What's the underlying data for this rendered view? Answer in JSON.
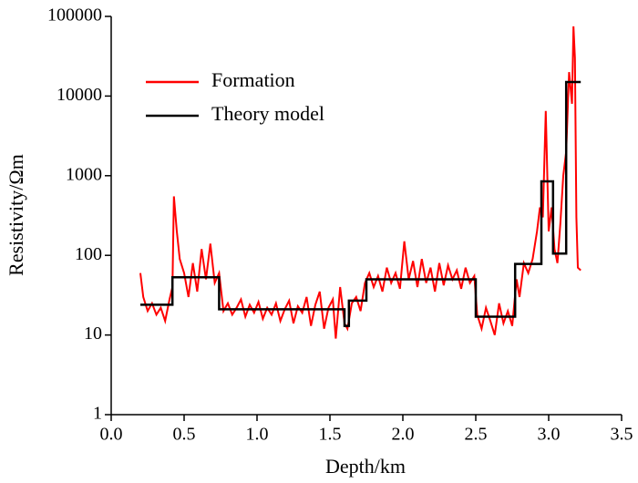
{
  "chart_data": {
    "type": "line",
    "xlabel": "Depth/km",
    "ylabel": "Resistivity/Ωm",
    "xlim": [
      0,
      3.5
    ],
    "xticks": [
      {
        "value": 0,
        "label": "0.0"
      },
      0.5,
      {
        "value": 1,
        "label": "1.0"
      },
      1.5,
      {
        "value": 2,
        "label": "2.0"
      },
      2.5,
      {
        "value": 3,
        "label": "3.0"
      },
      3.5
    ],
    "ylim": [
      1,
      100000
    ],
    "yticks": [
      1,
      10,
      100,
      1000,
      10000,
      100000
    ],
    "log_y": true,
    "legend": "upper left",
    "series": [
      {
        "name": "Formation",
        "color": "#ff0000",
        "x": [
          0.2,
          0.22,
          0.25,
          0.28,
          0.31,
          0.34,
          0.37,
          0.4,
          0.42,
          0.43,
          0.45,
          0.47,
          0.5,
          0.53,
          0.56,
          0.59,
          0.62,
          0.65,
          0.68,
          0.71,
          0.74,
          0.77,
          0.8,
          0.83,
          0.86,
          0.89,
          0.92,
          0.95,
          0.98,
          1.01,
          1.04,
          1.07,
          1.1,
          1.13,
          1.16,
          1.19,
          1.22,
          1.25,
          1.28,
          1.31,
          1.34,
          1.37,
          1.4,
          1.43,
          1.46,
          1.49,
          1.52,
          1.54,
          1.57,
          1.6,
          1.62,
          1.65,
          1.68,
          1.71,
          1.74,
          1.77,
          1.8,
          1.83,
          1.86,
          1.89,
          1.92,
          1.95,
          1.98,
          2.01,
          2.04,
          2.07,
          2.1,
          2.13,
          2.16,
          2.19,
          2.22,
          2.25,
          2.28,
          2.31,
          2.34,
          2.37,
          2.4,
          2.43,
          2.46,
          2.49,
          2.51,
          2.54,
          2.57,
          2.6,
          2.63,
          2.66,
          2.69,
          2.72,
          2.75,
          2.78,
          2.8,
          2.83,
          2.86,
          2.89,
          2.92,
          2.94,
          2.96,
          2.98,
          3.0,
          3.02,
          3.04,
          3.06,
          3.08,
          3.1,
          3.12,
          3.14,
          3.16,
          3.17,
          3.18,
          3.19,
          3.2,
          3.22
        ],
        "values": [
          60,
          30,
          20,
          25,
          18,
          22,
          15,
          28,
          40,
          550,
          200,
          90,
          60,
          30,
          80,
          35,
          120,
          50,
          140,
          45,
          60,
          20,
          25,
          18,
          22,
          28,
          17,
          24,
          19,
          26,
          16,
          22,
          18,
          25,
          15,
          21,
          27,
          14,
          23,
          19,
          30,
          13,
          24,
          35,
          12,
          22,
          28,
          9,
          40,
          14,
          12,
          25,
          30,
          20,
          45,
          60,
          40,
          55,
          35,
          70,
          45,
          60,
          38,
          150,
          50,
          85,
          40,
          90,
          45,
          70,
          35,
          80,
          42,
          75,
          50,
          65,
          38,
          70,
          45,
          55,
          18,
          12,
          22,
          15,
          10,
          25,
          14,
          20,
          13,
          50,
          30,
          80,
          60,
          90,
          200,
          400,
          300,
          6500,
          200,
          400,
          120,
          80,
          250,
          1000,
          2000,
          20000,
          8000,
          75000,
          30000,
          300,
          70,
          65
        ]
      },
      {
        "name": "Theory model",
        "color": "#000000",
        "x": [
          0.2,
          0.42,
          0.42,
          0.74,
          0.74,
          1.6,
          1.6,
          1.63,
          1.63,
          1.75,
          1.75,
          2.5,
          2.5,
          2.77,
          2.77,
          2.95,
          2.95,
          3.03,
          3.03,
          3.12,
          3.12,
          3.22
        ],
        "values": [
          24,
          24,
          53,
          53,
          21,
          21,
          13,
          13,
          27,
          27,
          50,
          50,
          17,
          17,
          78,
          78,
          850,
          850,
          105,
          105,
          15000,
          15000
        ]
      }
    ]
  }
}
